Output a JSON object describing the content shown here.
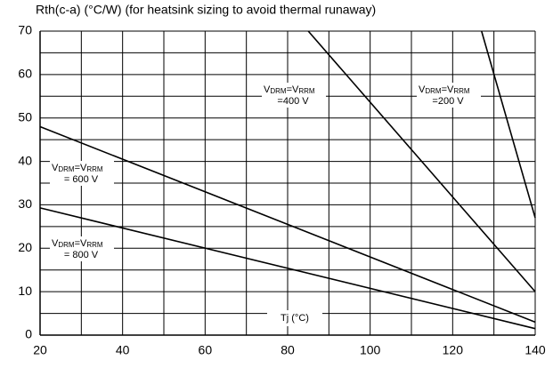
{
  "chart_data": {
    "type": "line",
    "title": "Rth(c-a) (°C/W) (for heatsink sizing to avoid thermal runaway)",
    "x_label": "Tj (°C)",
    "xlim": [
      20,
      140
    ],
    "xticks": [
      20,
      40,
      60,
      80,
      100,
      120,
      140
    ],
    "xminor": [
      30,
      50,
      70,
      90,
      110,
      130
    ],
    "ylim": [
      0,
      70
    ],
    "yticks": [
      0,
      10,
      20,
      30,
      40,
      50,
      60,
      70
    ],
    "yminor": [
      5,
      15,
      25,
      35,
      45,
      55,
      65
    ],
    "grid": true,
    "color": "#000000",
    "series": [
      {
        "label_parts": [
          "V",
          "DRM",
          "=V",
          "RRM"
        ],
        "voltage": "= 800 V",
        "x": [
          20,
          140
        ],
        "values": [
          29.3,
          1.5
        ]
      },
      {
        "label_parts": [
          "V",
          "DRM",
          "=V",
          "RRM"
        ],
        "voltage": "= 600 V",
        "x": [
          20,
          140
        ],
        "values": [
          48,
          3
        ]
      },
      {
        "label_parts": [
          "V",
          "DRM",
          "=V",
          "RRM"
        ],
        "voltage": "=400 V",
        "x": [
          85,
          140
        ],
        "values": [
          70,
          10
        ]
      },
      {
        "label_parts": [
          "V",
          "DRM",
          "=V",
          "RRM"
        ],
        "voltage": "=200 V",
        "x": [
          127,
          140
        ],
        "values": [
          70,
          27
        ]
      }
    ]
  }
}
